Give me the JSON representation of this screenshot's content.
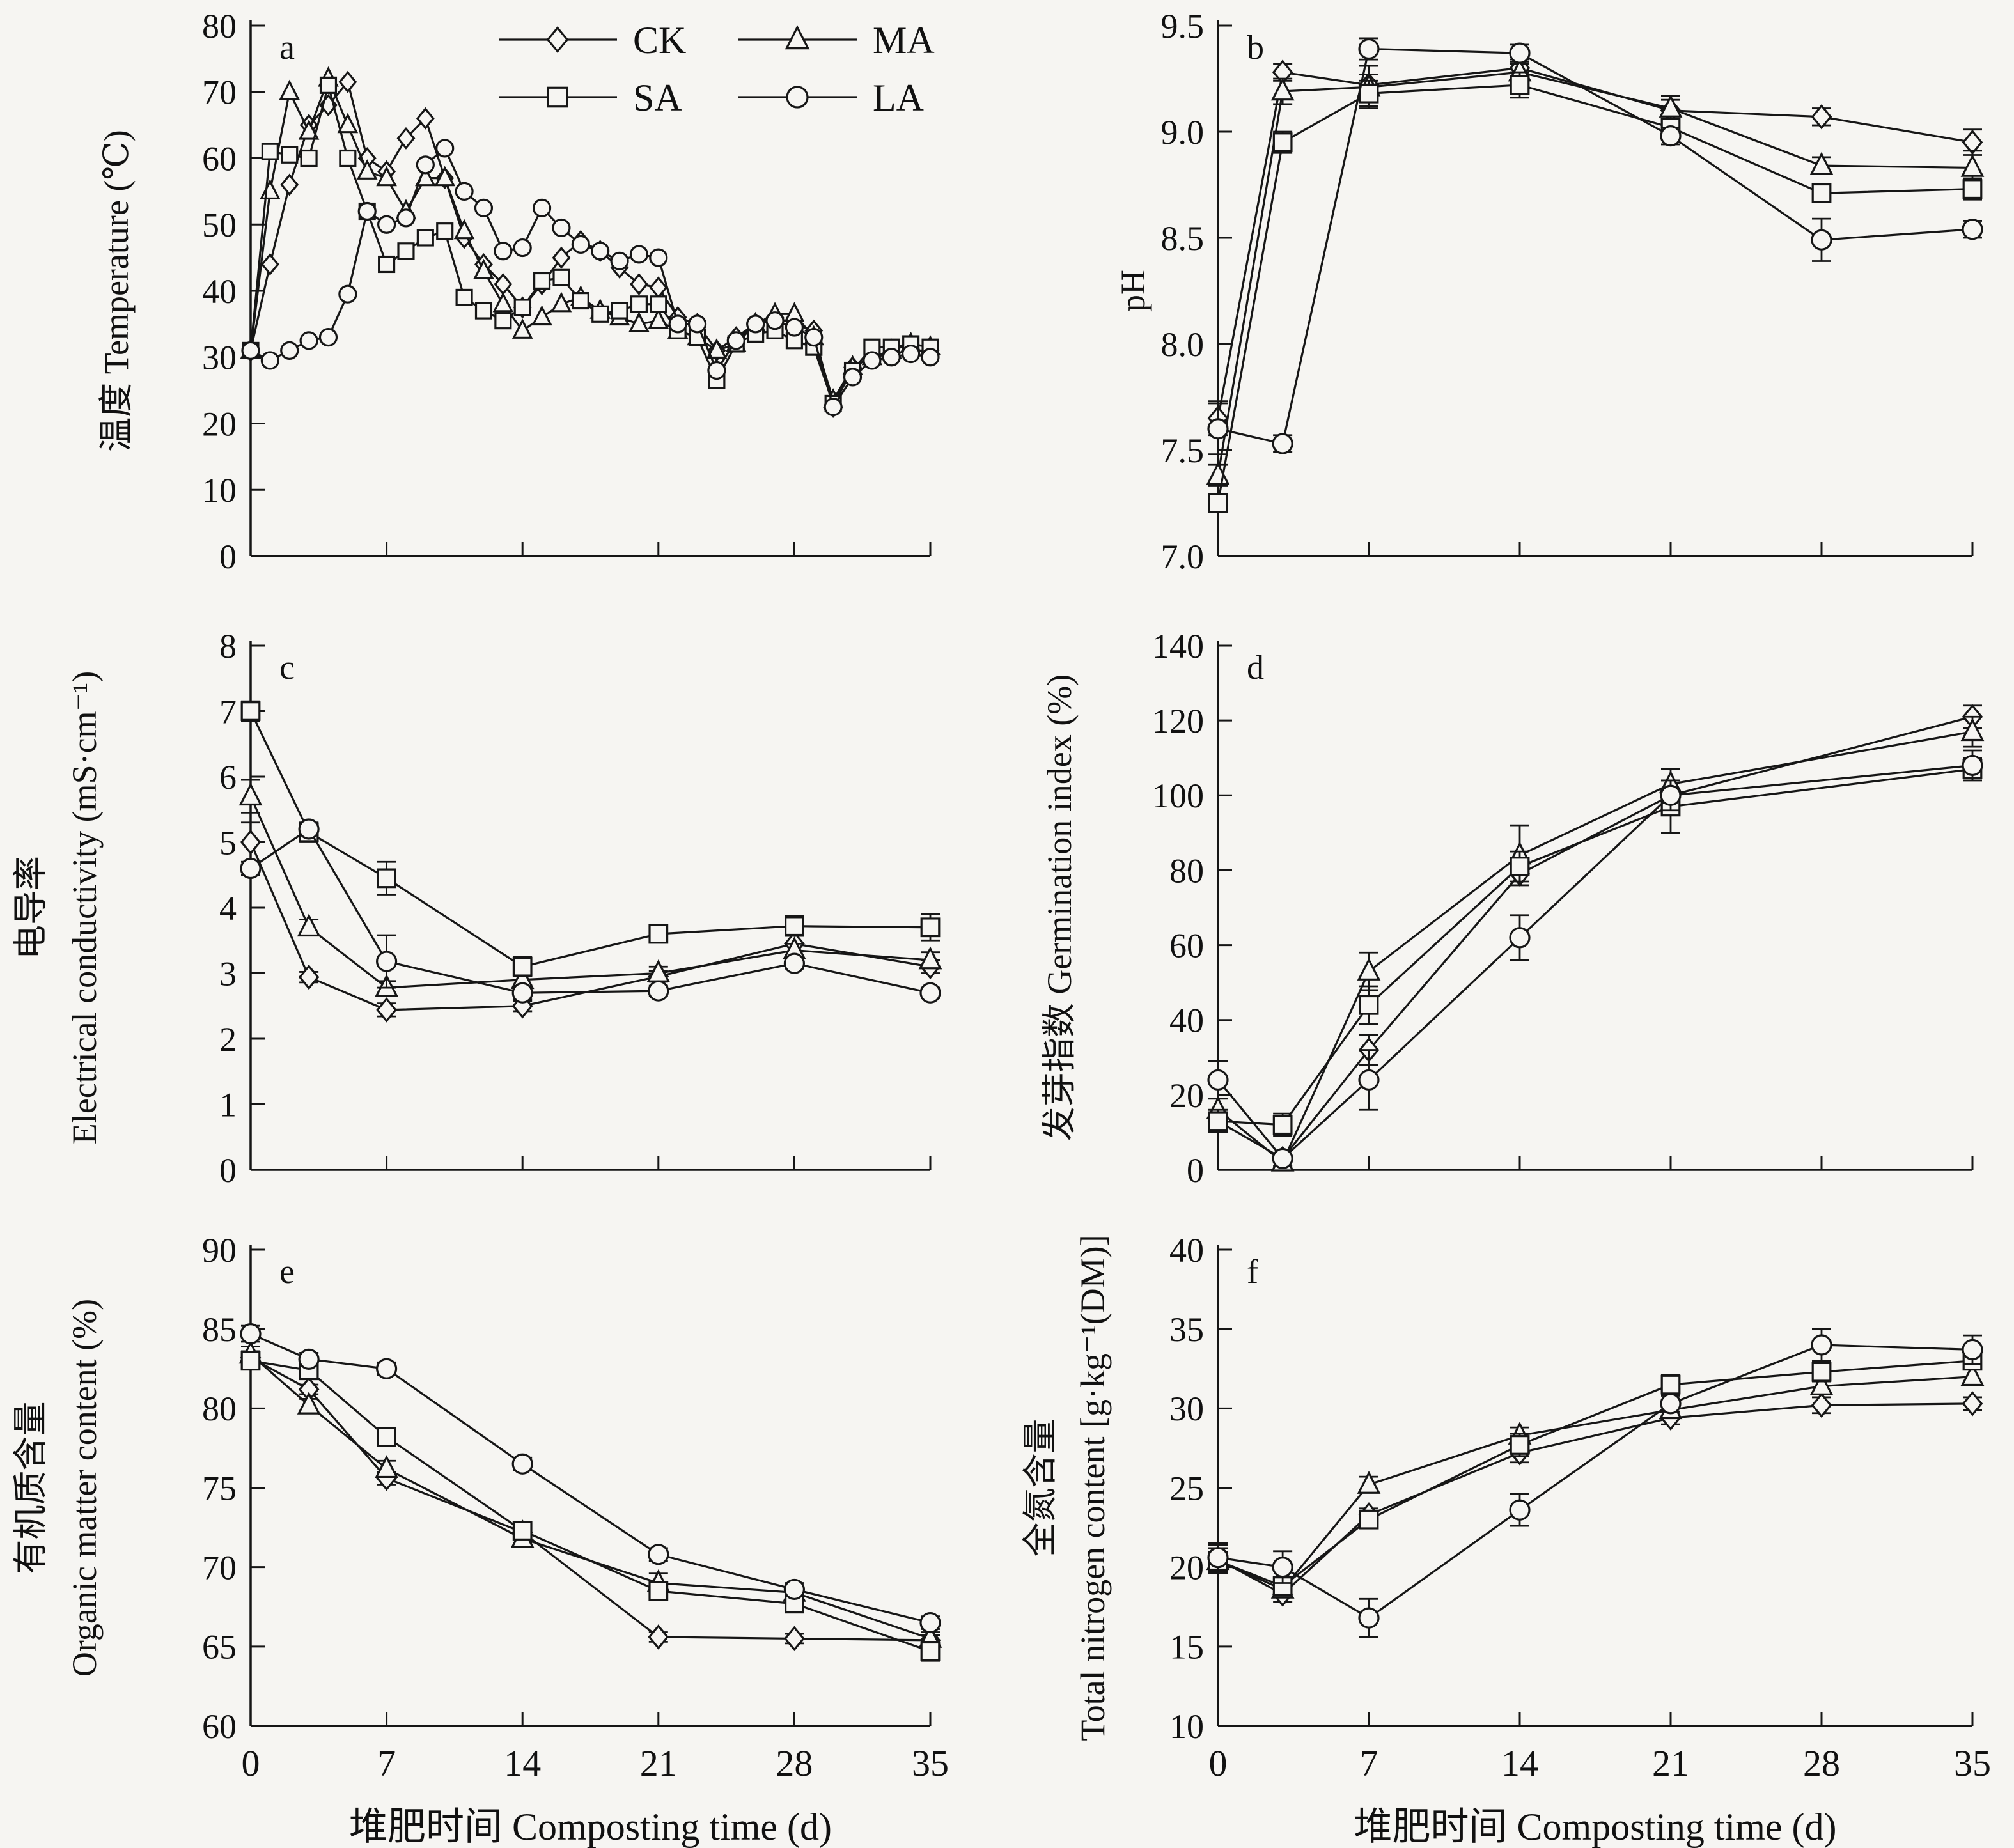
{
  "figure": {
    "background": "#f6f5f2",
    "line_color": "#161616",
    "text_color": "#111111",
    "legend": {
      "position": "top-right-of-panel-a",
      "items": [
        {
          "label": "CK",
          "marker": "diamond"
        },
        {
          "label": "MA",
          "marker": "triangle"
        },
        {
          "label": "SA",
          "marker": "square"
        },
        {
          "label": "LA",
          "marker": "circle"
        }
      ]
    },
    "xlabel": "堆肥时间 Composting time (d)"
  },
  "chart_data": [
    {
      "id": "a",
      "type": "line",
      "panel_letter": "a",
      "ylabel": "温度 Temperature (℃)",
      "ylabel_lines": [
        "温度 Temperature (℃)"
      ],
      "ylabel_x": [
        200
      ],
      "xlabel": "",
      "xlim": [
        0,
        35
      ],
      "ylim": [
        0,
        80
      ],
      "yticks": [
        0,
        10,
        20,
        30,
        40,
        50,
        60,
        70,
        80
      ],
      "ytick_decimals": 0,
      "xticks": [
        0,
        7,
        14,
        21,
        28,
        35
      ],
      "show_xtick_labels": false,
      "show_legend": true,
      "marker_r": 13,
      "x": [
        0,
        1,
        2,
        3,
        4,
        5,
        6,
        7,
        8,
        9,
        10,
        11,
        12,
        13,
        14,
        15,
        16,
        17,
        18,
        19,
        20,
        21,
        22,
        23,
        24,
        25,
        26,
        27,
        28,
        29,
        30,
        31,
        32,
        33,
        34,
        35
      ],
      "series": [
        {
          "name": "CK",
          "marker": "diamond",
          "values": [
            31,
            44,
            56,
            65,
            68,
            71.5,
            60,
            58,
            63,
            66,
            57,
            48,
            44,
            41,
            37.5,
            41,
            45,
            47.5,
            46,
            43.5,
            41,
            40.5,
            36,
            35,
            31,
            33,
            35,
            36,
            35,
            34,
            22.5,
            28.5,
            30,
            30.5,
            31,
            31
          ]
        },
        {
          "name": "MA",
          "marker": "triangle",
          "values": [
            31,
            55,
            70,
            64,
            72,
            65,
            58,
            57,
            52,
            57,
            57,
            49,
            43,
            38,
            34,
            36,
            38,
            39,
            37,
            36,
            35,
            35.5,
            34,
            33,
            31,
            32,
            35,
            36.5,
            36.5,
            33,
            23.5,
            28.5,
            30,
            31,
            32,
            31.5
          ]
        },
        {
          "name": "SA",
          "marker": "square",
          "values": [
            31,
            61,
            60.5,
            60,
            71,
            60,
            52,
            44,
            46,
            48,
            49,
            39,
            37,
            35.5,
            37.5,
            41.5,
            42,
            38.5,
            36.5,
            37,
            38,
            38,
            34,
            33,
            26.5,
            32,
            33.5,
            34,
            32.5,
            31.5,
            23,
            28,
            31.5,
            31.5,
            32,
            31.5
          ]
        },
        {
          "name": "LA",
          "marker": "circle",
          "values": [
            31,
            29.5,
            31,
            32.5,
            33,
            39.5,
            52,
            50,
            51,
            59,
            61.5,
            55,
            52.5,
            46,
            46.5,
            52.5,
            49.5,
            47,
            46,
            44.5,
            45.5,
            45,
            35,
            35,
            28,
            32.5,
            35,
            35.5,
            34.5,
            33,
            22.5,
            27,
            29.5,
            30,
            30.5,
            30
          ]
        }
      ]
    },
    {
      "id": "b",
      "type": "line",
      "panel_letter": "b",
      "ylabel": "pH",
      "ylabel_lines": [
        "pH"
      ],
      "ylabel_x": [
        215
      ],
      "xlabel": "",
      "xlim": [
        0,
        35
      ],
      "ylim": [
        7.0,
        9.5
      ],
      "yticks": [
        7.0,
        7.5,
        8.0,
        8.5,
        9.0,
        9.5
      ],
      "ytick_decimals": 1,
      "xticks": [
        0,
        7,
        14,
        21,
        28,
        35
      ],
      "show_xtick_labels": false,
      "show_legend": false,
      "marker_r": 15,
      "x": [
        0,
        3,
        7,
        14,
        21,
        28,
        35
      ],
      "series": [
        {
          "name": "CK",
          "marker": "diamond",
          "values": [
            7.65,
            9.28,
            9.22,
            9.3,
            9.1,
            9.07,
            8.95
          ],
          "err": [
            0.08,
            0.04,
            0.05,
            0.04,
            0.05,
            0.04,
            0.06
          ]
        },
        {
          "name": "MA",
          "marker": "triangle",
          "values": [
            7.38,
            9.19,
            9.21,
            9.28,
            9.11,
            8.84,
            8.83
          ],
          "err": [
            0.05,
            0.06,
            0.1,
            0.04,
            0.06,
            0.04,
            0.08
          ]
        },
        {
          "name": "SA",
          "marker": "square",
          "values": [
            7.25,
            8.95,
            9.18,
            9.22,
            9.02,
            8.71,
            8.73
          ],
          "err": [
            0.04,
            0.05,
            0.06,
            0.06,
            0.04,
            0.04,
            0.05
          ]
        },
        {
          "name": "LA",
          "marker": "circle",
          "values": [
            7.6,
            7.53,
            9.39,
            9.37,
            8.98,
            8.49,
            8.54
          ],
          "err": [
            0.12,
            0.04,
            0.05,
            0.04,
            0.04,
            0.1,
            0.04
          ]
        }
      ]
    },
    {
      "id": "c",
      "type": "line",
      "panel_letter": "c",
      "ylabel": "电导率 Electrical conductivity (mS·cm⁻¹)",
      "ylabel_lines": [
        "电导率",
        "Electrical conductivity (mS·cm⁻¹)"
      ],
      "ylabel_x": [
        66,
        150
      ],
      "xlabel": "",
      "xlim": [
        0,
        35
      ],
      "ylim": [
        0,
        8
      ],
      "yticks": [
        0,
        1,
        2,
        3,
        4,
        5,
        6,
        7,
        8
      ],
      "ytick_decimals": 0,
      "xticks": [
        0,
        7,
        14,
        21,
        28,
        35
      ],
      "show_xtick_labels": false,
      "show_legend": false,
      "marker_r": 15,
      "x": [
        0,
        3,
        7,
        14,
        21,
        28,
        35
      ],
      "series": [
        {
          "name": "CK",
          "marker": "diamond",
          "values": [
            5.0,
            2.94,
            2.44,
            2.5,
            2.95,
            3.45,
            3.1
          ],
          "err": [
            0.3,
            0.08,
            0.1,
            0.08,
            0.08,
            0.12,
            0.1
          ]
        },
        {
          "name": "MA",
          "marker": "triangle",
          "values": [
            5.7,
            3.7,
            2.78,
            2.9,
            3.0,
            3.35,
            3.2
          ],
          "err": [
            0.25,
            0.12,
            0.1,
            0.08,
            0.1,
            0.1,
            0.12
          ]
        },
        {
          "name": "SA",
          "marker": "square",
          "values": [
            7.0,
            5.15,
            4.45,
            3.1,
            3.6,
            3.72,
            3.7
          ],
          "err": [
            0.15,
            0.15,
            0.25,
            0.15,
            0.12,
            0.15,
            0.2
          ]
        },
        {
          "name": "LA",
          "marker": "circle",
          "values": [
            4.6,
            5.2,
            3.18,
            2.7,
            2.73,
            3.15,
            2.7
          ],
          "err": [
            0.1,
            0.1,
            0.4,
            0.1,
            0.08,
            0.08,
            0.08
          ]
        }
      ]
    },
    {
      "id": "d",
      "type": "line",
      "panel_letter": "d",
      "ylabel": "发芽指数 Germination index (%)",
      "ylabel_lines": [
        "发芽指数 Germination index (%)"
      ],
      "ylabel_x": [
        100
      ],
      "xlabel": "",
      "xlim": [
        0,
        35
      ],
      "ylim": [
        0,
        140
      ],
      "yticks": [
        0,
        20,
        40,
        60,
        80,
        100,
        120,
        140
      ],
      "ytick_decimals": 0,
      "xticks": [
        0,
        7,
        14,
        21,
        28,
        35
      ],
      "show_xtick_labels": false,
      "show_legend": false,
      "marker_r": 15,
      "x": [
        0,
        3,
        7,
        14,
        21,
        35
      ],
      "series": [
        {
          "name": "CK",
          "marker": "diamond",
          "values": [
            13,
            3,
            32,
            79,
            100,
            121
          ],
          "err": [
            3,
            1,
            4,
            3,
            4,
            3
          ]
        },
        {
          "name": "MA",
          "marker": "triangle",
          "values": [
            16,
            2,
            53,
            84,
            103,
            117
          ],
          "err": [
            3,
            1,
            5,
            8,
            4,
            4
          ]
        },
        {
          "name": "SA",
          "marker": "square",
          "values": [
            13,
            12,
            44,
            81,
            97,
            107
          ],
          "err": [
            3,
            3,
            5,
            4,
            7,
            3
          ]
        },
        {
          "name": "LA",
          "marker": "circle",
          "values": [
            24,
            3,
            24,
            62,
            100,
            108
          ],
          "err": [
            5,
            1,
            8,
            6,
            4,
            4
          ]
        }
      ]
    },
    {
      "id": "e",
      "type": "line",
      "panel_letter": "e",
      "ylabel": "有机质含量 Organic matter content (%)",
      "ylabel_lines": [
        "有机质含量",
        "Organic matter content (%)"
      ],
      "ylabel_x": [
        66,
        150
      ],
      "xlabel": "堆肥时间 Composting time (d)",
      "xlim": [
        0,
        35
      ],
      "ylim": [
        60,
        90
      ],
      "yticks": [
        60,
        65,
        70,
        75,
        80,
        85,
        90
      ],
      "ytick_decimals": 0,
      "xticks": [
        0,
        7,
        14,
        21,
        28,
        35
      ],
      "show_xtick_labels": true,
      "show_legend": false,
      "marker_r": 15,
      "x": [
        0,
        3,
        7,
        14,
        21,
        28,
        35
      ],
      "series": [
        {
          "name": "CK",
          "marker": "diamond",
          "values": [
            83.2,
            81.2,
            75.6,
            72.2,
            65.6,
            65.5,
            65.4
          ],
          "err": [
            0.4,
            0.3,
            0.4,
            0.3,
            0.3,
            0.3,
            0.3
          ]
        },
        {
          "name": "MA",
          "marker": "triangle",
          "values": [
            83.4,
            80.2,
            76.2,
            71.8,
            69.0,
            68.4,
            65.5
          ],
          "err": [
            0.5,
            0.4,
            0.5,
            0.3,
            0.6,
            0.3,
            0.4
          ]
        },
        {
          "name": "SA",
          "marker": "square",
          "values": [
            83.0,
            82.4,
            78.2,
            72.3,
            68.5,
            67.7,
            64.7
          ],
          "err": [
            0.4,
            0.3,
            0.4,
            0.3,
            0.4,
            0.3,
            0.6
          ]
        },
        {
          "name": "LA",
          "marker": "circle",
          "values": [
            84.7,
            83.1,
            82.5,
            76.5,
            70.8,
            68.6,
            66.5
          ],
          "err": [
            0.5,
            0.4,
            0.4,
            0.4,
            0.4,
            0.4,
            0.4
          ]
        }
      ]
    },
    {
      "id": "f",
      "type": "line",
      "panel_letter": "f",
      "ylabel": "全氮含量 Total nitrogen content [g·kg⁻¹(DM)]",
      "ylabel_lines": [
        "全氮含量",
        "Total nitrogen content [g·kg⁻¹(DM)]"
      ],
      "ylabel_x": [
        70,
        152
      ],
      "xlabel": "堆肥时间 Composting time (d)",
      "xlim": [
        0,
        35
      ],
      "ylim": [
        10,
        40
      ],
      "yticks": [
        10,
        15,
        20,
        25,
        30,
        35,
        40
      ],
      "ytick_decimals": 0,
      "xticks": [
        0,
        7,
        14,
        21,
        28,
        35
      ],
      "show_xtick_labels": true,
      "show_legend": false,
      "marker_r": 15,
      "x": [
        0,
        3,
        7,
        14,
        21,
        28,
        35
      ],
      "series": [
        {
          "name": "CK",
          "marker": "diamond",
          "values": [
            20.5,
            18.3,
            23.3,
            27.2,
            29.4,
            30.2,
            30.3
          ],
          "err": [
            0.9,
            0.5,
            0.4,
            0.6,
            0.4,
            0.5,
            0.4
          ]
        },
        {
          "name": "MA",
          "marker": "triangle",
          "values": [
            20.4,
            18.6,
            25.2,
            28.3,
            29.9,
            31.4,
            32.0
          ],
          "err": [
            0.8,
            0.5,
            0.5,
            0.5,
            0.4,
            0.5,
            0.5
          ]
        },
        {
          "name": "SA",
          "marker": "square",
          "values": [
            20.4,
            18.8,
            23.0,
            27.7,
            31.5,
            32.3,
            33.0
          ],
          "err": [
            0.8,
            0.6,
            0.4,
            0.7,
            0.6,
            0.6,
            0.5
          ]
        },
        {
          "name": "LA",
          "marker": "circle",
          "values": [
            20.6,
            20.0,
            16.8,
            23.6,
            30.3,
            34.0,
            33.7
          ],
          "err": [
            0.9,
            1.0,
            1.2,
            1.0,
            0.5,
            1.0,
            0.9
          ]
        }
      ]
    }
  ]
}
